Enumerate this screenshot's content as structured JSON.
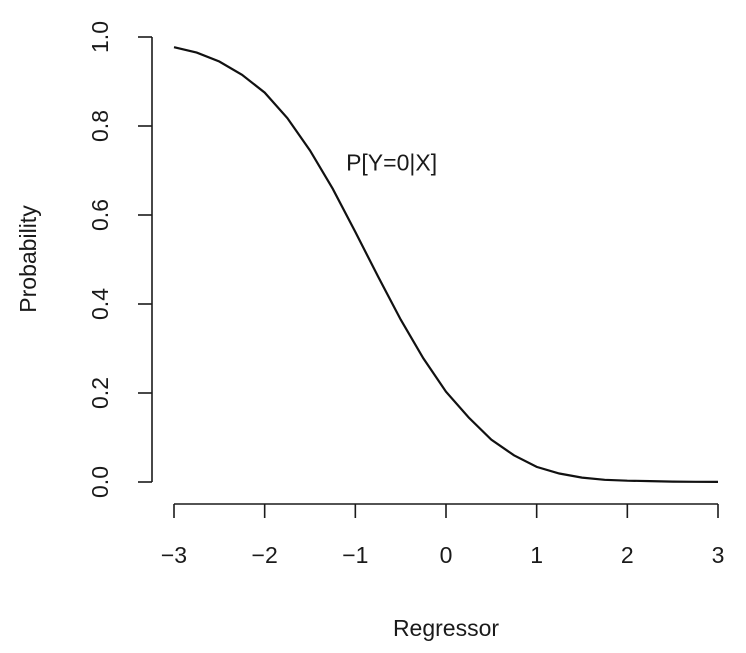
{
  "chart_data": {
    "type": "line",
    "xlabel": "Regressor",
    "ylabel": "Probability",
    "xlim": [
      -3,
      3
    ],
    "ylim": [
      0,
      1
    ],
    "x_ticks": [
      -3,
      -2,
      -1,
      0,
      1,
      2,
      3
    ],
    "x_tick_labels": [
      "−3",
      "−2",
      "−1",
      "0",
      "1",
      "2",
      "3"
    ],
    "y_ticks": [
      0,
      0.2,
      0.4,
      0.6,
      0.8,
      1.0
    ],
    "y_tick_labels": [
      "0.0",
      "0.2",
      "0.4",
      "0.6",
      "0.8",
      "1.0"
    ],
    "grid": false,
    "series": [
      {
        "x": [
          -3.0,
          -2.75,
          -2.5,
          -2.25,
          -2.0,
          -1.75,
          -1.5,
          -1.25,
          -1.0,
          -0.75,
          -0.5,
          -0.25,
          0.0,
          0.25,
          0.5,
          0.75,
          1.0,
          1.25,
          1.5,
          1.75,
          2.0,
          2.25,
          2.5,
          2.75,
          3.0
        ],
        "y": [
          0.977,
          0.965,
          0.945,
          0.915,
          0.875,
          0.818,
          0.745,
          0.659,
          0.562,
          0.462,
          0.365,
          0.278,
          0.203,
          0.145,
          0.095,
          0.06,
          0.034,
          0.019,
          0.01,
          0.005,
          0.003,
          0.002,
          0.001,
          0.0005,
          0.0003
        ]
      }
    ],
    "annotations": [
      {
        "text": "P[Y=0|X]",
        "x": -0.6,
        "y": 0.7
      }
    ],
    "color": "#111111"
  }
}
